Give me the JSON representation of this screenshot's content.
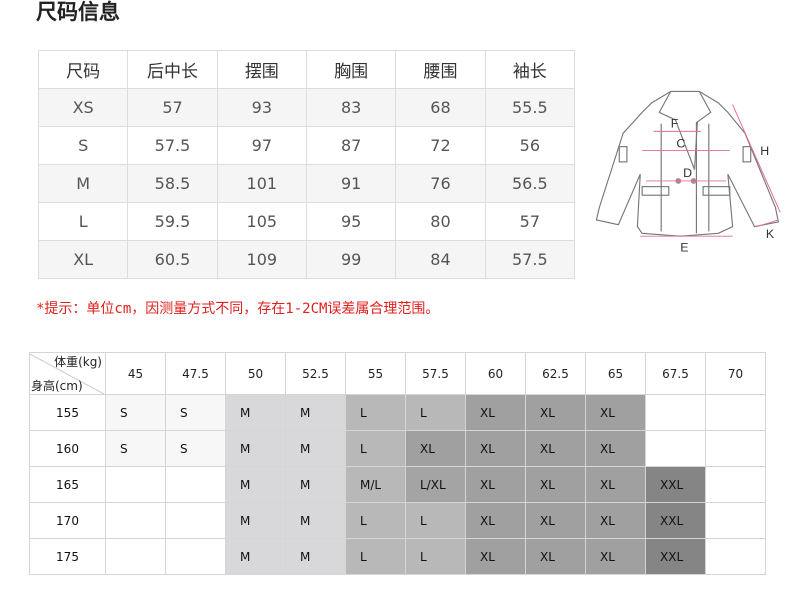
{
  "title": "尺码信息",
  "size_table": {
    "headers": [
      "尺码",
      "后中长",
      "摆围",
      "胸围",
      "腰围",
      "袖长"
    ],
    "rows": [
      [
        "XS",
        "57",
        "93",
        "83",
        "68",
        "55.5"
      ],
      [
        "S",
        "57.5",
        "97",
        "87",
        "72",
        "56"
      ],
      [
        "M",
        "58.5",
        "101",
        "91",
        "76",
        "56.5"
      ],
      [
        "L",
        "59.5",
        "105",
        "95",
        "80",
        "57"
      ],
      [
        "XL",
        "60.5",
        "109",
        "99",
        "84",
        "57.5"
      ]
    ]
  },
  "diagram_labels": [
    "F",
    "C",
    "D",
    "H",
    "K",
    "E"
  ],
  "note": "*提示：单位cm，因测量方式不同，存在1-2CM误差属合理范围。",
  "recommend_table": {
    "weight_label": "体重(kg)",
    "height_label": "身高(cm)",
    "weights": [
      "45",
      "47.5",
      "50",
      "52.5",
      "55",
      "57.5",
      "60",
      "62.5",
      "65",
      "67.5",
      "70"
    ],
    "rows": [
      {
        "height": "155",
        "sizes": [
          "S",
          "S",
          "M",
          "M",
          "L",
          "L",
          "XL",
          "XL",
          "XL",
          "",
          ""
        ]
      },
      {
        "height": "160",
        "sizes": [
          "S",
          "S",
          "M",
          "M",
          "L",
          "XL",
          "XL",
          "XL",
          "XL",
          "",
          ""
        ]
      },
      {
        "height": "165",
        "sizes": [
          "",
          "",
          "M",
          "M",
          "M/L",
          "L/XL",
          "XL",
          "XL",
          "XL",
          "XXL",
          ""
        ]
      },
      {
        "height": "170",
        "sizes": [
          "",
          "",
          "M",
          "M",
          "L",
          "L",
          "XL",
          "XL",
          "XL",
          "XXL",
          ""
        ]
      },
      {
        "height": "175",
        "sizes": [
          "",
          "",
          "M",
          "M",
          "L",
          "L",
          "XL",
          "XL",
          "XL",
          "XXL",
          ""
        ]
      }
    ],
    "colors": {
      "S": "#f7f7f7",
      "M": "#d8d8da",
      "L": "#b8b8b8",
      "M/L": "#b8b8b8",
      "L/XL": "#a4a4a4",
      "XL": "#a0a0a0",
      "XXL": "#858585"
    },
    "note_color": "#e0201c"
  }
}
